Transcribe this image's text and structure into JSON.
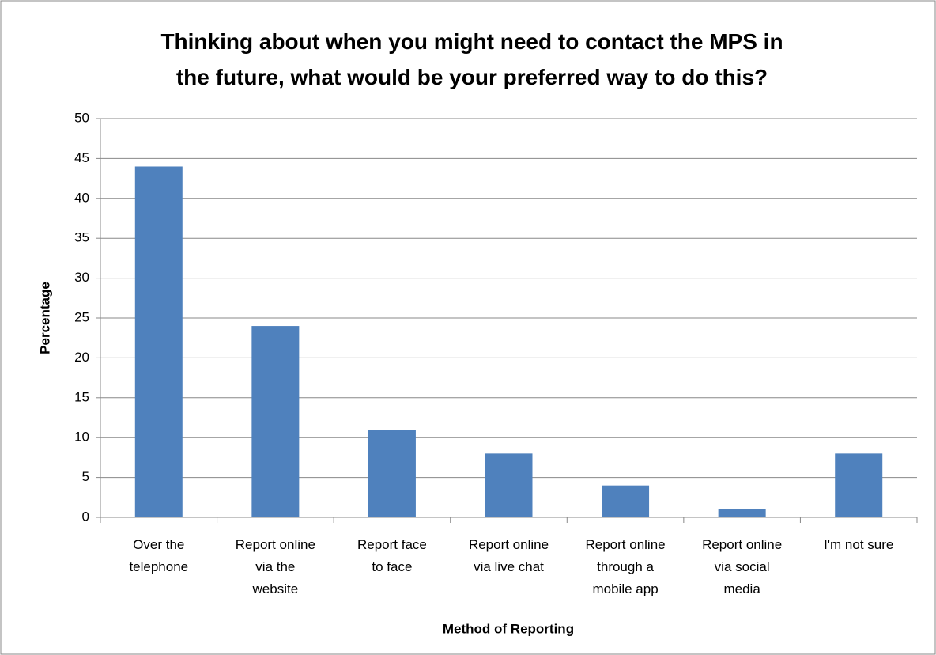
{
  "chart_data": {
    "type": "bar",
    "title": "Thinking about when you might need to contact the MPS in the future, what would be your preferred way to do this?",
    "x_label": "Method of Reporting",
    "y_label": "Percentage",
    "categories": [
      "Over the telephone",
      "Report online via the website",
      "Report face to face",
      "Report online via live chat",
      "Report online through a mobile app",
      "Report online via social media",
      "I'm not sure"
    ],
    "values": [
      44,
      24,
      11,
      8,
      4,
      1,
      8
    ],
    "color": "#4f81bd",
    "ylim": [
      0,
      50
    ],
    "yticks": [
      0,
      5,
      10,
      15,
      20,
      25,
      30,
      35,
      40,
      45,
      50
    ],
    "grid": true
  }
}
